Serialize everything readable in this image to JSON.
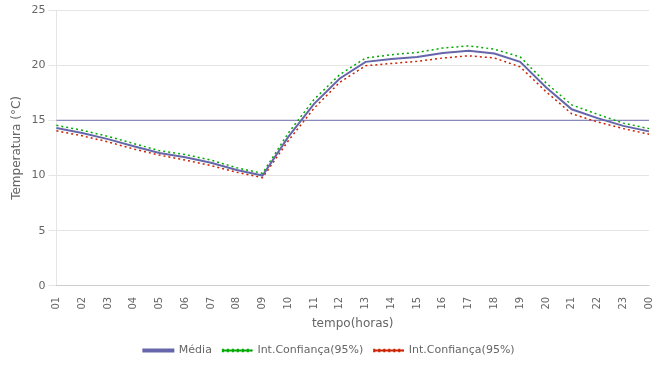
{
  "chart_data": {
    "type": "line",
    "categories": [
      "01",
      "02",
      "03",
      "04",
      "05",
      "06",
      "07",
      "08",
      "09",
      "10",
      "11",
      "12",
      "13",
      "14",
      "15",
      "16",
      "17",
      "18",
      "19",
      "20",
      "21",
      "22",
      "23",
      "00"
    ],
    "series": [
      {
        "name": "Média",
        "color": "#6666aa",
        "line_style": "solid",
        "values": [
          14.3,
          13.85,
          13.3,
          12.65,
          12.05,
          11.65,
          11.15,
          10.5,
          10.0,
          13.5,
          16.5,
          18.8,
          20.3,
          20.55,
          20.75,
          21.1,
          21.3,
          21.05,
          20.3,
          18.0,
          16.0,
          15.2,
          14.5,
          14.0
        ]
      },
      {
        "name": "Int.Confiança(95%)",
        "color": "#00aa00",
        "line_style": "dotted",
        "values": [
          14.55,
          14.1,
          13.55,
          12.9,
          12.25,
          11.9,
          11.4,
          10.7,
          10.2,
          13.85,
          16.9,
          19.15,
          20.65,
          20.95,
          21.15,
          21.55,
          21.75,
          21.45,
          20.75,
          18.4,
          16.4,
          15.55,
          14.75,
          14.25
        ]
      },
      {
        "name": "Int.Confiança(95%)",
        "color": "#cc2200",
        "line_style": "dotted",
        "values": [
          14.05,
          13.6,
          13.05,
          12.4,
          11.85,
          11.4,
          10.9,
          10.3,
          9.8,
          13.15,
          16.1,
          18.45,
          19.95,
          20.15,
          20.35,
          20.65,
          20.85,
          20.65,
          19.85,
          17.6,
          15.6,
          14.85,
          14.25,
          13.75
        ]
      }
    ],
    "hline": {
      "y": 15.0,
      "color": "#8888bb"
    },
    "xlabel": "tempo(horas)",
    "ylabel": "Temperatura (°C)",
    "ylim": [
      0,
      25
    ],
    "yticks": [
      0,
      5,
      10,
      15,
      20,
      25
    ],
    "grid": "y",
    "legend": "bottom"
  }
}
